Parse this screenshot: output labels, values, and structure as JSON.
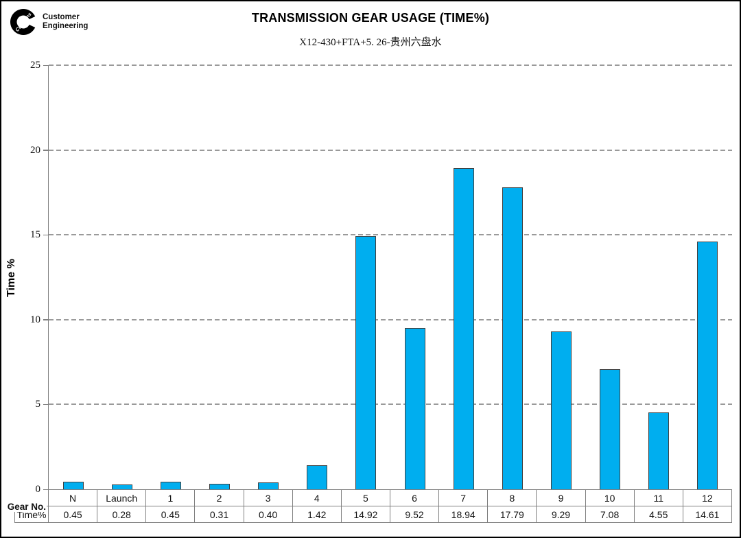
{
  "logo": {
    "brand": "Cummins",
    "line1": "Customer",
    "line2": "Engineering"
  },
  "header": {
    "title": "TRANSMISSION GEAR USAGE (TIME%)",
    "subtitle": "X12-430+FTA+5. 26-贵州六盘水"
  },
  "chart_data": {
    "type": "bar",
    "title": "TRANSMISSION GEAR USAGE (TIME%)",
    "subtitle": "X12-430+FTA+5. 26-贵州六盘水",
    "categories": [
      "N",
      "Launch",
      "1",
      "2",
      "3",
      "4",
      "5",
      "6",
      "7",
      "8",
      "9",
      "10",
      "11",
      "12"
    ],
    "values": [
      0.45,
      0.28,
      0.45,
      0.31,
      0.4,
      1.42,
      14.92,
      9.52,
      18.94,
      17.79,
      9.29,
      7.08,
      4.55,
      14.61
    ],
    "xlabel": "Gear No.",
    "ylabel": "Time %",
    "ylim": [
      0,
      25
    ],
    "yticks": [
      0,
      5,
      10,
      15,
      20,
      25
    ],
    "grid": "horizontal-dashed",
    "legend": "none",
    "bar_color": "#00AEEF",
    "bar_border_color": "#404040"
  },
  "table": {
    "row1_header": "Gear No.",
    "row2_header": "Time%",
    "columns": [
      "N",
      "Launch",
      "1",
      "2",
      "3",
      "4",
      "5",
      "6",
      "7",
      "8",
      "9",
      "10",
      "11",
      "12"
    ],
    "values": [
      "0.45",
      "0.28",
      "0.45",
      "0.31",
      "0.40",
      "1.42",
      "14.92",
      "9.52",
      "18.94",
      "17.79",
      "9.29",
      "7.08",
      "4.55",
      "14.61"
    ]
  }
}
